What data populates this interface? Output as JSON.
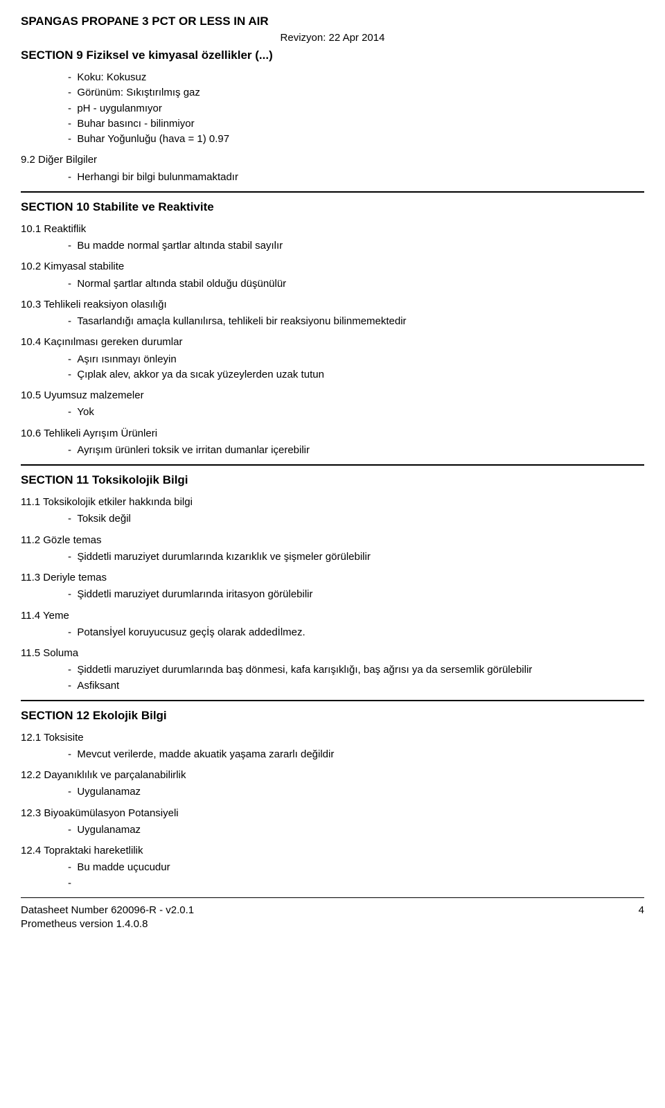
{
  "doc": {
    "title": "SPANGAS PROPANE 3 PCT OR LESS IN AIR",
    "revision": "Revizyon: 22  Apr  2014"
  },
  "section9": {
    "heading": "SECTION 9   Fiziksel ve kimyasal özellikler (...)",
    "items": [
      "Koku: Kokusuz",
      "Görünüm: Sıkıştırılmış gaz",
      "pH - uygulanmıyor",
      "Buhar basıncı - bilinmiyor",
      "Buhar Yoğunluğu (hava = 1) 0.97"
    ],
    "sub92": "9.2 Diğer Bilgiler",
    "sub92_items": [
      "Herhangi bir bilgi bulunmamaktadır"
    ]
  },
  "section10": {
    "heading": "SECTION 10   Stabilite ve Reaktivite",
    "s101": "10.1 Reaktiflik",
    "s101_items": [
      "Bu madde normal şartlar altında stabil sayılır"
    ],
    "s102": "10.2 Kimyasal stabilite",
    "s102_items": [
      "Normal şartlar altında stabil olduğu düşünülür"
    ],
    "s103": "10.3 Tehlikeli reaksiyon olasılığı",
    "s103_items": [
      "Tasarlandığı amaçla kullanılırsa, tehlikeli bir reaksiyonu bilinmemektedir"
    ],
    "s104": "10.4 Kaçınılması gereken durumlar",
    "s104_items": [
      "Aşırı ısınmayı önleyin",
      "Çıplak alev, akkor ya da sıcak yüzeylerden uzak tutun"
    ],
    "s105": "10.5 Uyumsuz malzemeler",
    "s105_items": [
      "Yok"
    ],
    "s106": "10.6 Tehlikeli Ayrışım Ürünleri",
    "s106_items": [
      "Ayrışım ürünleri toksik ve irritan dumanlar içerebilir"
    ]
  },
  "section11": {
    "heading": "SECTION 11   Toksikolojik Bilgi",
    "s111": "11.1 Toksikolojik etkiler hakkında bilgi",
    "s111_items": [
      "Toksik değil"
    ],
    "s112": "11.2 Gözle temas",
    "s112_items": [
      "Şiddetli maruziyet durumlarında kızarıklık ve şişmeler görülebilir"
    ],
    "s113": "11.3 Deriyle temas",
    "s113_items": [
      "Şiddetli maruziyet durumlarında iritasyon görülebilir"
    ],
    "s114": "11.4 Yeme",
    "s114_items": [
      "Potansİyel koruyucusuz geçİş olarak addedİlmez."
    ],
    "s115": "11.5 Soluma",
    "s115_items": [
      "Şiddetli maruziyet durumlarında baş dönmesi, kafa karışıklığı, baş ağrısı ya da sersemlik görülebilir",
      "Asfiksant"
    ]
  },
  "section12": {
    "heading": "SECTION 12   Ekolojik Bilgi",
    "s121": "12.1 Toksisite",
    "s121_items": [
      "Mevcut verilerde, madde akuatik yaşama zararlı değildir"
    ],
    "s122": "12.2 Dayanıklılık ve parçalanabilirlik",
    "s122_items": [
      "Uygulanamaz"
    ],
    "s123": "12.3 Biyoakümülasyon Potansiyeli",
    "s123_items": [
      "Uygulanamaz"
    ],
    "s124": "12.4 Topraktaki hareketlilik",
    "s124_items": [
      "Bu madde uçucudur",
      ""
    ]
  },
  "footer": {
    "datasheet": "Datasheet Number 620096-R - v2.0.1",
    "prometheus": "Prometheus version 1.4.0.8",
    "page": "4"
  }
}
